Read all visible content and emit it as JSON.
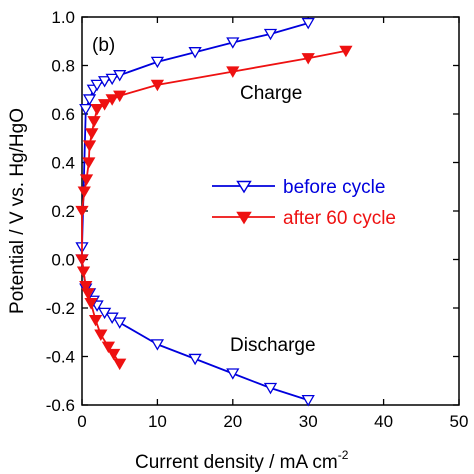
{
  "chart_data": {
    "type": "line",
    "panel_label": "(b)",
    "xlabel": "Current density / mA cm",
    "xlabel_superscript": "-2",
    "ylabel": "Potential / V vs. Hg/HgO",
    "xlim": [
      0,
      50
    ],
    "ylim": [
      -0.6,
      1.0
    ],
    "xticks": [
      "0",
      "10",
      "20",
      "30",
      "40",
      "50"
    ],
    "yticks": [
      "-0.6",
      "-0.4",
      "-0.2",
      "0.0",
      "0.2",
      "0.4",
      "0.6",
      "0.8",
      "1.0"
    ],
    "grid": false,
    "legend_position": "center-right",
    "annotations": [
      "Charge",
      "Discharge"
    ],
    "series": [
      {
        "name": "before cycle",
        "color": "#0000dd",
        "marker": "open-triangle-down",
        "x": [
          30,
          25,
          20,
          15,
          10,
          5,
          4,
          3,
          2,
          1.5,
          1,
          0.5,
          0,
          0,
          0.5,
          1,
          1.5,
          2,
          3,
          4,
          5,
          10,
          15,
          20,
          25,
          30
        ],
        "y": [
          -0.58,
          -0.53,
          -0.47,
          -0.41,
          -0.35,
          -0.26,
          -0.24,
          -0.22,
          -0.19,
          -0.17,
          -0.14,
          -0.12,
          0.0,
          0.05,
          0.62,
          0.66,
          0.7,
          0.72,
          0.735,
          0.745,
          0.76,
          0.815,
          0.855,
          0.895,
          0.93,
          0.975
        ]
      },
      {
        "name": "after 60 cycle",
        "color": "#ee1111",
        "marker": "filled-triangle-down",
        "x": [
          5,
          4.2,
          3.5,
          2.5,
          1.8,
          1.2,
          0.8,
          0.5,
          0.2,
          0,
          0,
          0.3,
          0.6,
          0.9,
          1,
          1.3,
          1.6,
          2,
          3,
          4,
          5,
          10,
          20,
          30,
          35
        ],
        "y": [
          -0.43,
          -0.39,
          -0.36,
          -0.31,
          -0.25,
          -0.18,
          -0.14,
          -0.11,
          -0.05,
          0.0,
          0.2,
          0.28,
          0.33,
          0.4,
          0.47,
          0.52,
          0.57,
          0.62,
          0.64,
          0.66,
          0.675,
          0.72,
          0.775,
          0.83,
          0.86
        ]
      }
    ]
  }
}
